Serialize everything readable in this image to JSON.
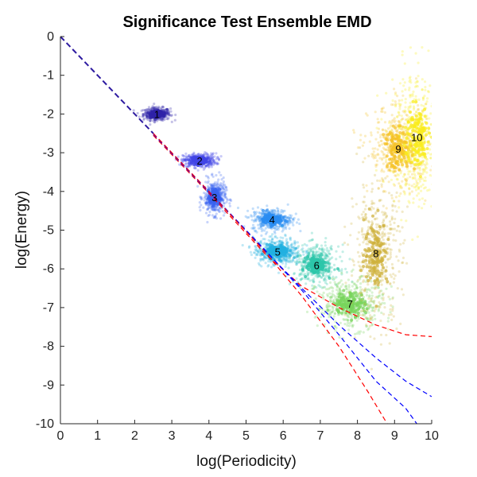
{
  "chart_data": {
    "type": "scatter",
    "title": "Significance Test Ensemble EMD",
    "xlabel": "log(Periodicity)",
    "ylabel": "log(Energy)",
    "xlim": [
      0,
      10
    ],
    "ylim": [
      -10,
      0
    ],
    "xticks": [
      "0",
      "1",
      "2",
      "3",
      "4",
      "5",
      "6",
      "7",
      "8",
      "9",
      "10"
    ],
    "yticks": [
      "0",
      "-1",
      "-2",
      "-3",
      "-4",
      "-5",
      "-6",
      "-7",
      "-8",
      "-9",
      "-10"
    ],
    "grid": false,
    "clusters": [
      {
        "label": "1",
        "x": 2.6,
        "y": -2.0,
        "spread_x": 0.18,
        "spread_y": 0.08,
        "color": "#2f23a8"
      },
      {
        "label": "2",
        "x": 3.75,
        "y": -3.2,
        "spread_x": 0.22,
        "spread_y": 0.09,
        "color": "#4146e6"
      },
      {
        "label": "3",
        "x": 4.15,
        "y": -4.15,
        "spread_x": 0.15,
        "spread_y": 0.22,
        "color": "#3a63f0"
      },
      {
        "label": "4",
        "x": 5.7,
        "y": -4.72,
        "spread_x": 0.27,
        "spread_y": 0.14,
        "color": "#2a8cf2"
      },
      {
        "label": "5",
        "x": 5.85,
        "y": -5.55,
        "spread_x": 0.32,
        "spread_y": 0.18,
        "color": "#22b0e0"
      },
      {
        "label": "6",
        "x": 6.9,
        "y": -5.9,
        "spread_x": 0.3,
        "spread_y": 0.25,
        "color": "#2cc6aa"
      },
      {
        "label": "7",
        "x": 7.8,
        "y": -6.9,
        "spread_x": 0.45,
        "spread_y": 0.32,
        "color": "#78d45c"
      },
      {
        "label": "8",
        "x": 8.5,
        "y": -5.6,
        "spread_x": 0.35,
        "spread_y": 0.9,
        "color": "#cfb23e"
      },
      {
        "label": "9",
        "x": 9.1,
        "y": -2.9,
        "spread_x": 0.4,
        "spread_y": 0.55,
        "color": "#f6c227"
      },
      {
        "label": "10",
        "x": 9.6,
        "y": -2.6,
        "spread_x": 0.35,
        "spread_y": 0.9,
        "color": "#f9ec1e"
      }
    ],
    "reference_lines": [
      {
        "style": "dashed",
        "color": "#2d1aa0",
        "points": [
          [
            0,
            0
          ],
          [
            2.5,
            -2.5
          ]
        ]
      },
      {
        "style": "dashed",
        "color": "#ff0000",
        "points": [
          [
            2.5,
            -2.55
          ],
          [
            4,
            -4.05
          ],
          [
            5.5,
            -5.6
          ],
          [
            6.5,
            -6.45
          ],
          [
            7.5,
            -7.0
          ],
          [
            8.5,
            -7.45
          ],
          [
            9.3,
            -7.7
          ],
          [
            10,
            -7.75
          ]
        ]
      },
      {
        "style": "dashed",
        "color": "#0000ff",
        "points": [
          [
            2.5,
            -2.52
          ],
          [
            4,
            -4.02
          ],
          [
            5.5,
            -5.52
          ],
          [
            6.5,
            -6.5
          ],
          [
            7.5,
            -7.45
          ],
          [
            8.5,
            -8.3
          ],
          [
            9.3,
            -8.9
          ],
          [
            10,
            -9.3
          ]
        ]
      },
      {
        "style": "dashed",
        "color": "#0000ff",
        "points": [
          [
            2.5,
            -2.5
          ],
          [
            4,
            -4.0
          ],
          [
            5.5,
            -5.5
          ],
          [
            6.5,
            -6.55
          ],
          [
            7.5,
            -7.7
          ],
          [
            8.5,
            -8.9
          ],
          [
            9.3,
            -9.6
          ],
          [
            9.6,
            -10
          ]
        ]
      },
      {
        "style": "dashed",
        "color": "#ff0000",
        "points": [
          [
            2.5,
            -2.5
          ],
          [
            4,
            -4.0
          ],
          [
            5.5,
            -5.55
          ],
          [
            6.5,
            -6.7
          ],
          [
            7.5,
            -8.0
          ],
          [
            8.3,
            -9.2
          ],
          [
            8.8,
            -10
          ]
        ]
      }
    ]
  }
}
